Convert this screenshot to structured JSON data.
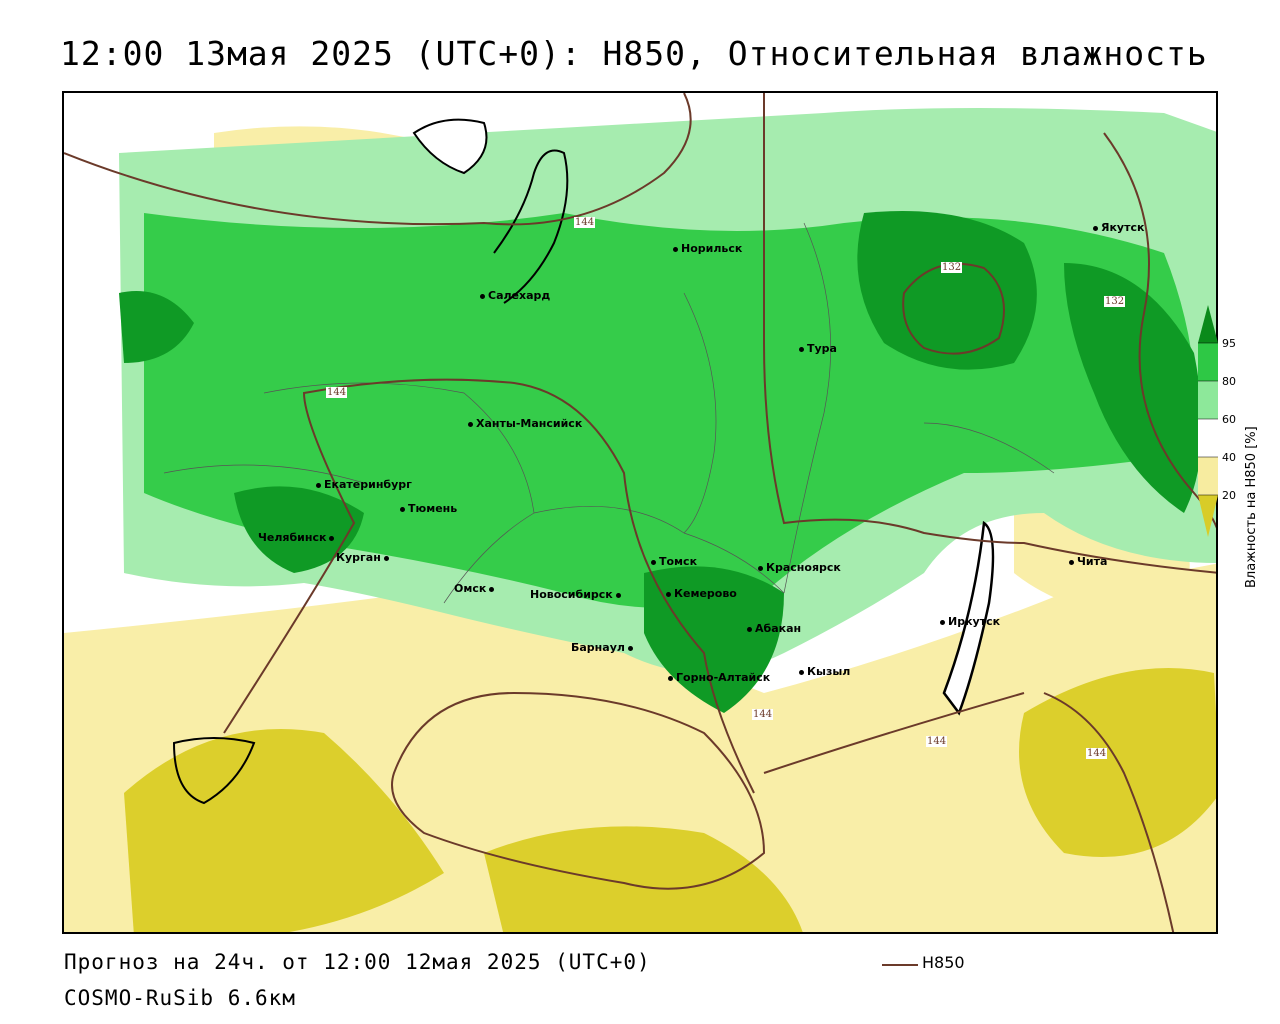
{
  "title": "12:00 13мая 2025 (UTC+0): H850, Относительная влажность",
  "footer": {
    "forecast": "Прогноз на 24ч. от 12:00 12мая 2025 (UTC+0)",
    "model": "COSMO-RuSib 6.6км",
    "contour_legend": "H850"
  },
  "legend": {
    "title": "Влажность на H850 [%]",
    "ticks": [
      "95",
      "80",
      "60",
      "40",
      "20"
    ],
    "colors": {
      "95": "#0a8a1a",
      "80": "#2ec845",
      "60": "#8de89a",
      "40": "#ffffff",
      "20": "#f7eca0",
      "0": "#d8cc28"
    }
  },
  "colors": {
    "contour": "#6b3a2a",
    "dark_green": "#0f9a25",
    "mid_green": "#35cc4a",
    "light_green": "#a6ecaf",
    "light_yellow": "#f9eea8",
    "dark_yellow": "#dccf2c"
  },
  "cities": [
    {
      "name": "Норильск"
    },
    {
      "name": "Якутск"
    },
    {
      "name": "Салехард"
    },
    {
      "name": "Тура"
    },
    {
      "name": "Ханты-Мансийск"
    },
    {
      "name": "Екатеринбург"
    },
    {
      "name": "Тюмень"
    },
    {
      "name": "Челябинск"
    },
    {
      "name": "Курган"
    },
    {
      "name": "Томск"
    },
    {
      "name": "Красноярск"
    },
    {
      "name": "Омск"
    },
    {
      "name": "Новосибирск"
    },
    {
      "name": "Кемерово"
    },
    {
      "name": "Абакан"
    },
    {
      "name": "Барнаул"
    },
    {
      "name": "Горно-Алтайск"
    },
    {
      "name": "Кызыл"
    },
    {
      "name": "Иркутск"
    },
    {
      "name": "Чита"
    }
  ],
  "contour_labels": [
    "144",
    "132",
    "132",
    "144",
    "144",
    "144",
    "144"
  ]
}
